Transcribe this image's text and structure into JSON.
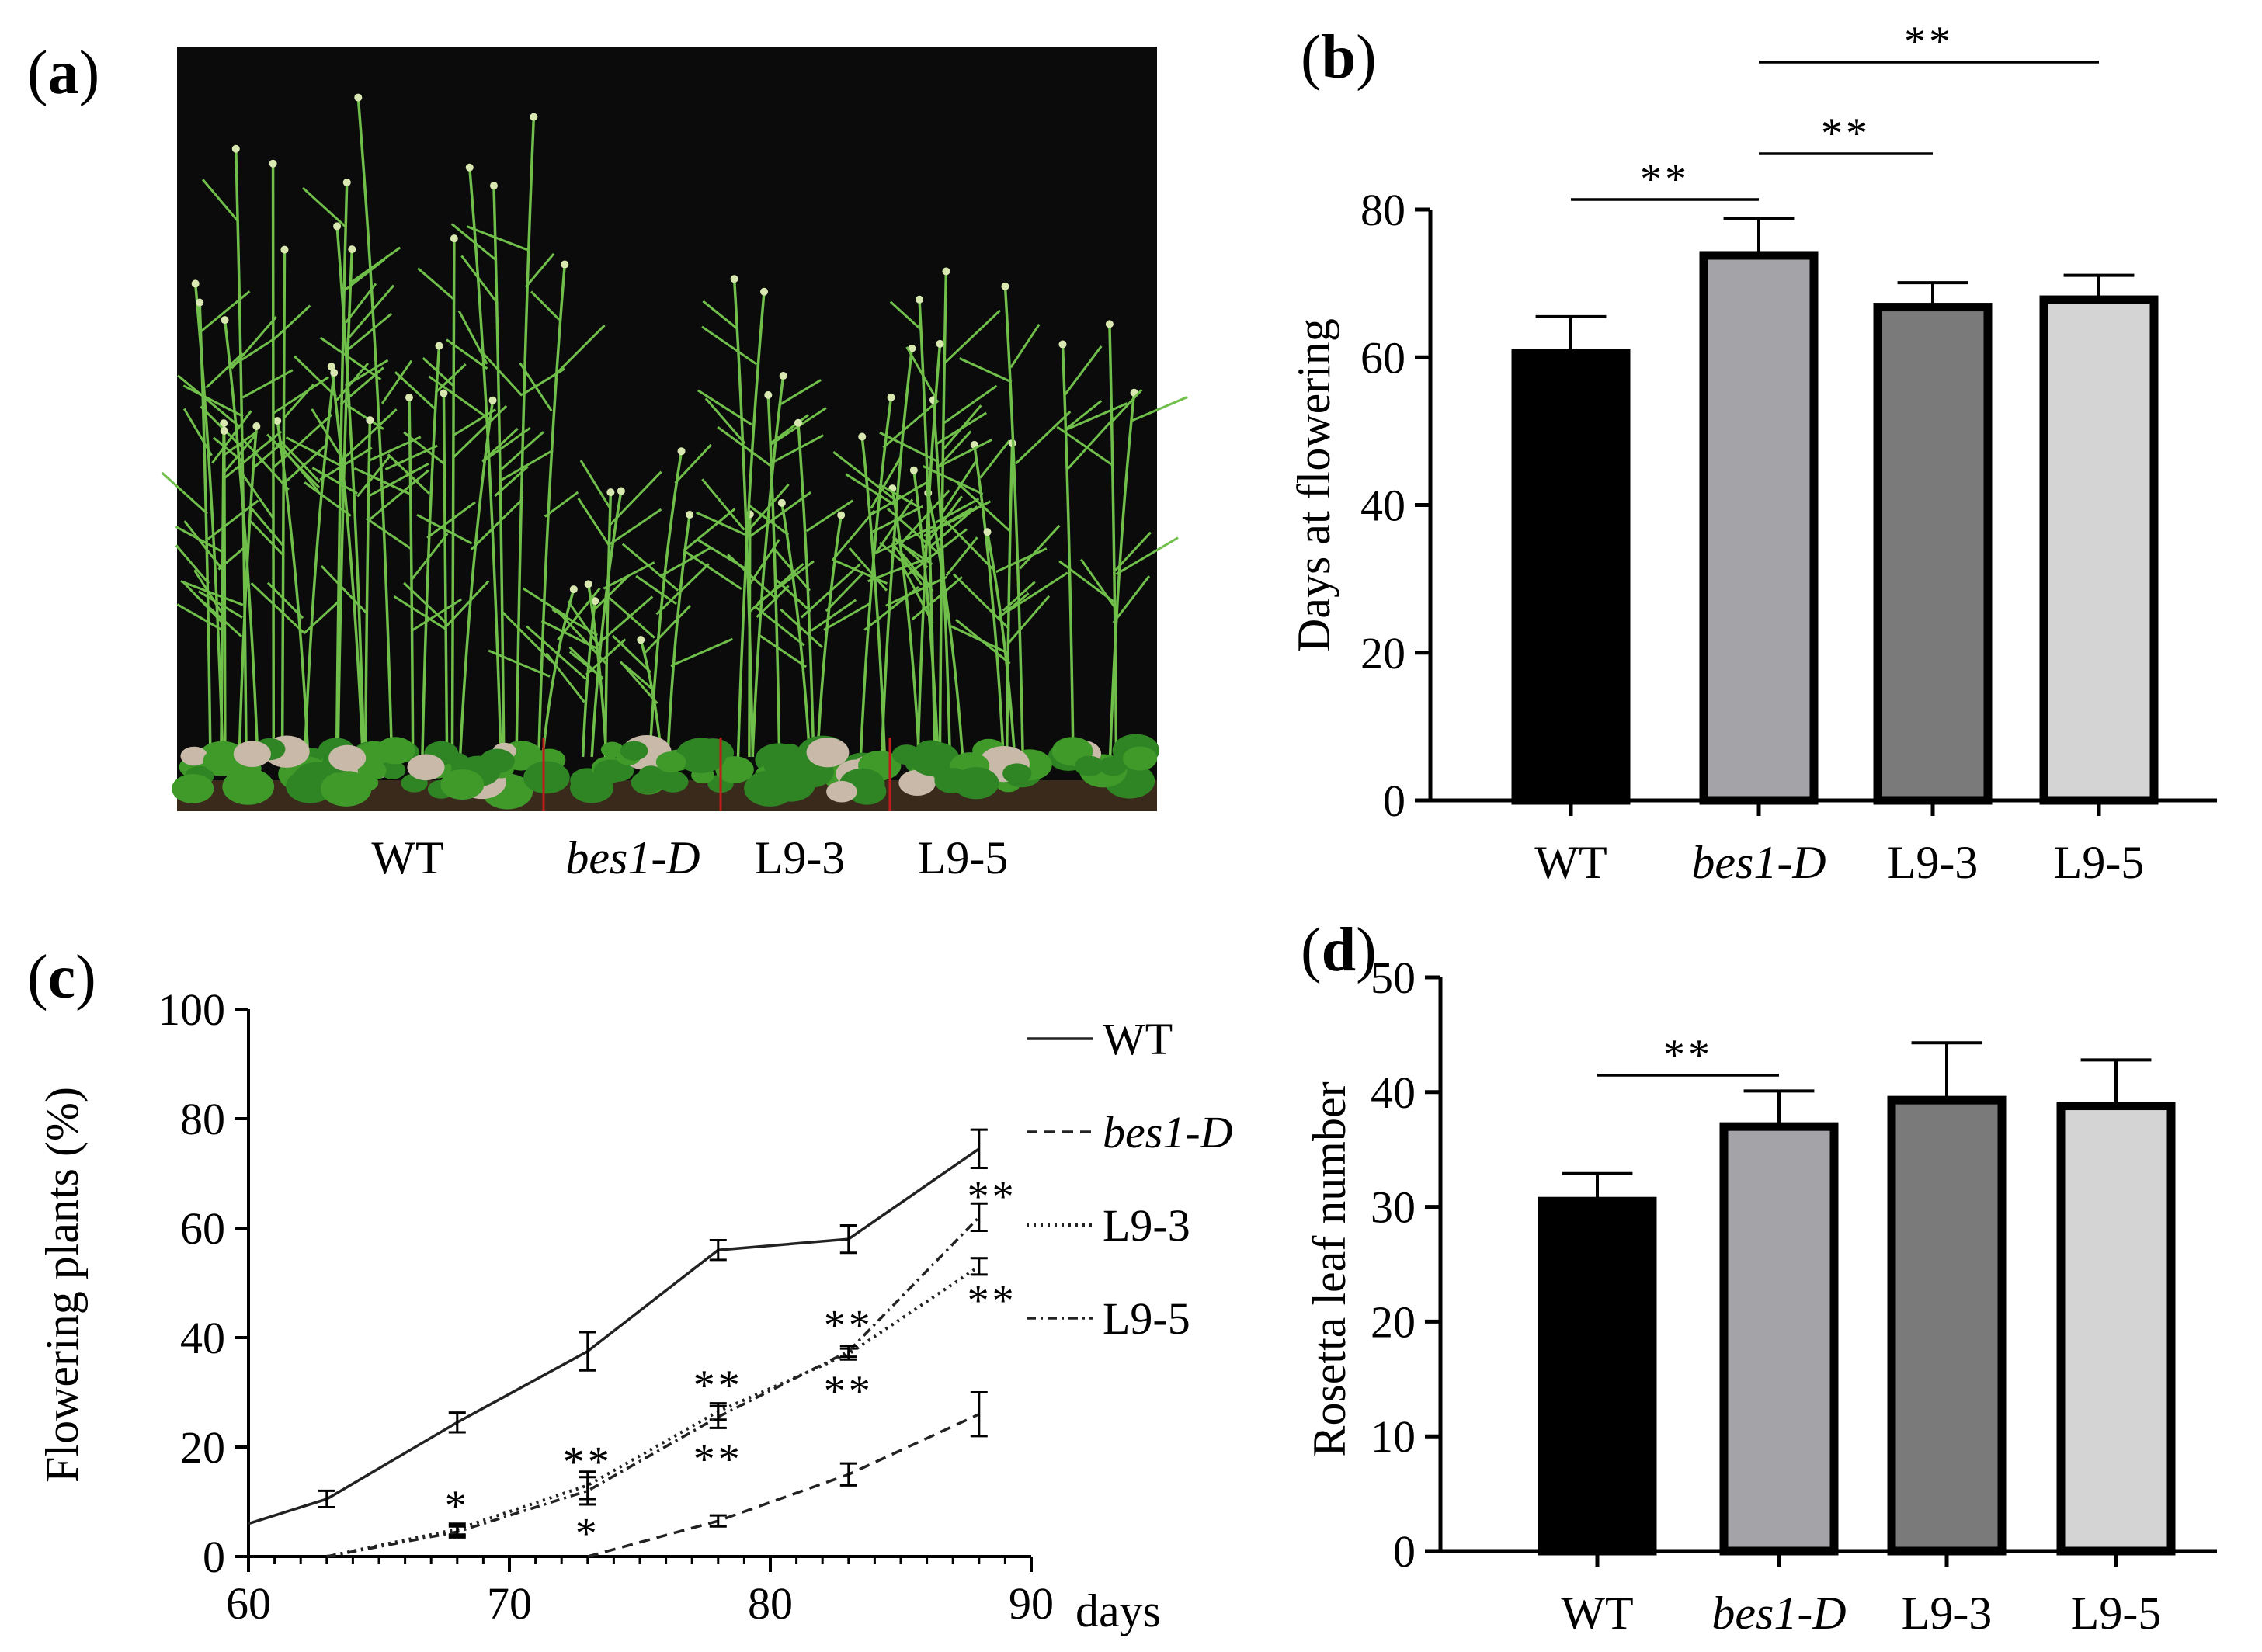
{
  "panels": {
    "a": {
      "label_open": "(",
      "letter": "a",
      "label_close": ")",
      "photo_labels": [
        "WT",
        "bes1-D",
        "L9-3",
        "L9-5"
      ],
      "photo_colors": {
        "background": "#0b0b0b",
        "leaf": "#3f9a2a",
        "stem": "#6fbf4a",
        "soil": "#3a2a1c",
        "divider": "#c21b1b"
      }
    },
    "b": {
      "label_open": "(",
      "letter": "b",
      "label_close": ")"
    },
    "c": {
      "label_open": "(",
      "letter": "c",
      "label_close": ")"
    },
    "d": {
      "label_open": "(",
      "letter": "d",
      "label_close": ")"
    }
  },
  "chart_data": [
    {
      "panel": "b",
      "type": "bar",
      "categories": [
        "WT",
        "bes1-D",
        "L9-3",
        "L9-5"
      ],
      "values": [
        60.5,
        73.8,
        66.8,
        67.8
      ],
      "errors": [
        5,
        5,
        3.3,
        3.3
      ],
      "colors": [
        "#000000",
        "#a3a3a8",
        "#7a7a7a",
        "#d4d4d4"
      ],
      "ylabel": "Days at flowering",
      "ylim": [
        0,
        80
      ],
      "yticks": [
        0,
        20,
        40,
        60,
        80
      ],
      "significance": [
        {
          "from": "WT",
          "to": "bes1-D",
          "text": "**"
        },
        {
          "from": "bes1-D",
          "to": "L9-3",
          "text": "**"
        },
        {
          "from": "bes1-D",
          "to": "L9-5",
          "text": "**"
        }
      ]
    },
    {
      "panel": "c",
      "type": "line",
      "xlabel": "days",
      "ylabel": "Flowering plants (%)",
      "xlim": [
        60,
        90
      ],
      "ylim": [
        0,
        100
      ],
      "xticks": [
        60,
        70,
        80,
        90
      ],
      "yticks": [
        0,
        20,
        40,
        60,
        80,
        100
      ],
      "legend_position": "top-right",
      "series": [
        {
          "name": "WT",
          "style": "solid",
          "points": [
            [
              60,
              6
            ],
            [
              63,
              10.5
            ],
            [
              68,
              24.5
            ],
            [
              73,
              37.5
            ],
            [
              78,
              56
            ],
            [
              83,
              58
            ],
            [
              88,
              74.5
            ]
          ],
          "errors": [
            0,
            1.5,
            1.8,
            3.5,
            1.8,
            2.5,
            3.5
          ]
        },
        {
          "name": "bes1-D",
          "style": "dashed",
          "points": [
            [
              73,
              0
            ],
            [
              78,
              6.5
            ],
            [
              83,
              15
            ],
            [
              88,
              26
            ]
          ],
          "errors": [
            0,
            1,
            2,
            4
          ]
        },
        {
          "name": "L9-3",
          "style": "dotted",
          "points": [
            [
              63,
              0
            ],
            [
              68,
              5
            ],
            [
              73,
              13
            ],
            [
              78,
              26.5
            ],
            [
              83,
              37
            ],
            [
              88,
              53
            ]
          ],
          "errors": [
            0,
            1,
            2.5,
            1.5,
            1,
            1.5
          ]
        },
        {
          "name": "L9-5",
          "style": "dashdot",
          "points": [
            [
              63,
              0
            ],
            [
              68,
              4.5
            ],
            [
              73,
              12
            ],
            [
              78,
              25.5
            ],
            [
              83,
              37.5
            ],
            [
              88,
              62
            ]
          ],
          "errors": [
            0,
            1,
            2.5,
            2,
            1,
            2.5
          ]
        }
      ],
      "annotations": [
        {
          "x": 68,
          "y": 9.5,
          "text": "*"
        },
        {
          "x": 73,
          "y": 17.5,
          "text": "**"
        },
        {
          "x": 73,
          "y": 4.5,
          "text": "*"
        },
        {
          "x": 78,
          "y": 31.5,
          "text": "**"
        },
        {
          "x": 78,
          "y": 18,
          "text": "**"
        },
        {
          "x": 83,
          "y": 42.5,
          "text": "**"
        },
        {
          "x": 83,
          "y": 30.5,
          "text": "**"
        },
        {
          "x": 88.5,
          "y": 66,
          "text": "**"
        },
        {
          "x": 88.5,
          "y": 47,
          "text": "**"
        }
      ]
    },
    {
      "panel": "d",
      "type": "bar",
      "categories": [
        "WT",
        "bes1-D",
        "L9-3",
        "L9-5"
      ],
      "values": [
        30.5,
        37,
        39.3,
        38.8
      ],
      "errors": [
        2.4,
        3.1,
        5.0,
        4.0
      ],
      "colors": [
        "#000000",
        "#a3a3a8",
        "#7a7a7a",
        "#d4d4d4"
      ],
      "ylabel": "Rosetta leaf number",
      "ylim": [
        0,
        50
      ],
      "yticks": [
        0,
        10,
        20,
        30,
        40,
        50
      ],
      "significance": [
        {
          "from": "WT",
          "to": "bes1-D",
          "text": "**"
        }
      ]
    }
  ]
}
